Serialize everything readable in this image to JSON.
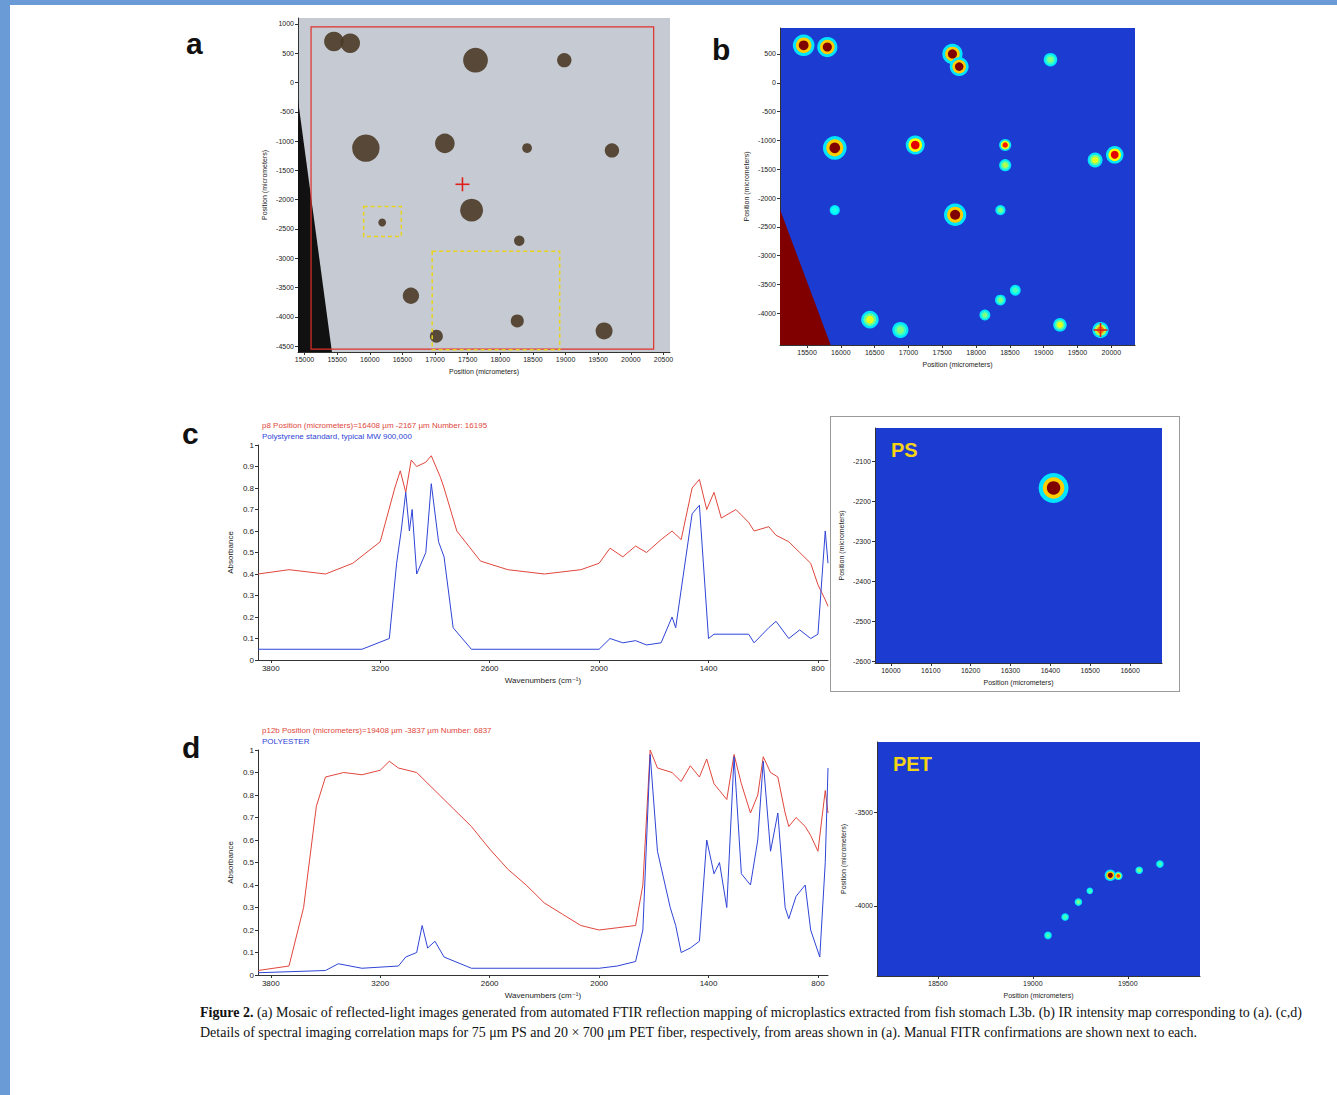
{
  "chart_data": [
    {
      "panel": "a",
      "type": "scatter",
      "x_label": "Position (micrometers)",
      "y_label": "Position (micrometers)",
      "xlim": [
        14900,
        20600
      ],
      "xticks": [
        15000,
        15500,
        16000,
        16500,
        17000,
        17500,
        18000,
        18500,
        19000,
        19500,
        20000,
        20500
      ],
      "ylim": [
        -4600,
        1100
      ],
      "yticks": [
        -4500,
        -4000,
        -3500,
        -3000,
        -2500,
        -2000,
        -1500,
        -1000,
        -500,
        0,
        500,
        1000
      ],
      "color": "#4a3a26",
      "particles": [
        {
          "x": 15450,
          "y": 700,
          "size": 300
        },
        {
          "x": 15700,
          "y": 670,
          "size": 300
        },
        {
          "x": 17620,
          "y": 380,
          "size": 380
        },
        {
          "x": 18980,
          "y": 380,
          "size": 220
        },
        {
          "x": 15940,
          "y": -1120,
          "size": 420
        },
        {
          "x": 17150,
          "y": -1040,
          "size": 300
        },
        {
          "x": 18410,
          "y": -1120,
          "size": 150
        },
        {
          "x": 19710,
          "y": -1160,
          "size": 220
        },
        {
          "x": 17560,
          "y": -2180,
          "size": 350
        },
        {
          "x": 16190,
          "y": -2390,
          "size": 120
        },
        {
          "x": 18290,
          "y": -2700,
          "size": 160
        },
        {
          "x": 16630,
          "y": -3640,
          "size": 250
        },
        {
          "x": 18260,
          "y": -4070,
          "size": 200
        },
        {
          "x": 19590,
          "y": -4240,
          "size": 260
        },
        {
          "x": 17020,
          "y": -4330,
          "size": 200
        }
      ],
      "mapping_area": {
        "x": [
          15100,
          20350
        ],
        "y": [
          -4550,
          950
        ]
      },
      "selected_areas": [
        {
          "x": [
            15906,
            16483
          ],
          "y": [
            -2628,
            -2115
          ]
        },
        {
          "x": [
            16956,
            18910
          ],
          "y": [
            -4560,
            -2880
          ]
        }
      ],
      "crosshair": {
        "x": 17420,
        "y": -1738
      },
      "filter_edge": [
        [
          14900,
          -300
        ],
        [
          14900,
          -4600
        ],
        [
          15420,
          -4600
        ]
      ]
    },
    {
      "panel": "b",
      "type": "heatmap",
      "x_label": "Position (micrometers)",
      "y_label": "Position (micrometers)",
      "xlim": [
        15100,
        20350
      ],
      "xticks": [
        15500,
        16000,
        16500,
        17000,
        17500,
        18000,
        18500,
        19000,
        19500,
        20000
      ],
      "ylim": [
        -4550,
        950
      ],
      "yticks": [
        -4000,
        -3500,
        -3000,
        -2500,
        -2000,
        -1500,
        -1000,
        -500,
        0,
        500
      ],
      "intensity_range": [
        0,
        1
      ],
      "hotspots": [
        {
          "x": 15450,
          "y": 650,
          "size": 320,
          "intensity": 1
        },
        {
          "x": 15800,
          "y": 620,
          "size": 300,
          "intensity": 1
        },
        {
          "x": 17650,
          "y": 500,
          "size": 300,
          "intensity": 1
        },
        {
          "x": 17750,
          "y": 280,
          "size": 280,
          "intensity": 1
        },
        {
          "x": 19100,
          "y": 400,
          "size": 200,
          "intensity": 0.5
        },
        {
          "x": 15910,
          "y": -1130,
          "size": 350,
          "intensity": 1
        },
        {
          "x": 17100,
          "y": -1080,
          "size": 280,
          "intensity": 0.9
        },
        {
          "x": 18430,
          "y": -1080,
          "size": 180,
          "intensity": 0.85
        },
        {
          "x": 18430,
          "y": -1430,
          "size": 180,
          "intensity": 0.55
        },
        {
          "x": 20050,
          "y": -1250,
          "size": 260,
          "intensity": 0.9
        },
        {
          "x": 19760,
          "y": -1340,
          "size": 220,
          "intensity": 0.6
        },
        {
          "x": 17690,
          "y": -2290,
          "size": 330,
          "intensity": 1
        },
        {
          "x": 18360,
          "y": -2210,
          "size": 150,
          "intensity": 0.5
        },
        {
          "x": 15910,
          "y": -2210,
          "size": 150,
          "intensity": 0.4
        },
        {
          "x": 16430,
          "y": -4110,
          "size": 260,
          "intensity": 0.6
        },
        {
          "x": 16880,
          "y": -4290,
          "size": 240,
          "intensity": 0.5
        },
        {
          "x": 18130,
          "y": -4030,
          "size": 160,
          "intensity": 0.5
        },
        {
          "x": 18360,
          "y": -3770,
          "size": 160,
          "intensity": 0.5
        },
        {
          "x": 18580,
          "y": -3600,
          "size": 160,
          "intensity": 0.45
        },
        {
          "x": 19240,
          "y": -4200,
          "size": 200,
          "intensity": 0.6
        },
        {
          "x": 19840,
          "y": -4290,
          "size": 240,
          "intensity": 0.75
        }
      ],
      "edge_signal": {
        "polygon": [
          [
            15100,
            -2200
          ],
          [
            15100,
            -4550
          ],
          [
            15850,
            -4550
          ]
        ],
        "intensity": 1
      },
      "crosshair": {
        "x": 19840,
        "y": -4290
      }
    },
    {
      "panel": "c",
      "type": "line",
      "x_label": "Wavenumbers (cm⁻¹)",
      "y_label": "Absorbance",
      "xlim": [
        3870,
        745
      ],
      "xticks": [
        3800,
        3200,
        2600,
        2000,
        1400,
        800
      ],
      "ylim": [
        0,
        1
      ],
      "yticks": [
        0,
        0.1,
        0.2,
        0.3,
        0.4,
        0.5,
        0.6,
        0.7,
        0.8,
        0.9,
        1
      ],
      "series": [
        {
          "name": "p8 Position (micrometers)=16408 µm -2167 µm Number: 16195",
          "color": "#e0463c",
          "x": [
            3870,
            3700,
            3500,
            3350,
            3200,
            3120,
            3090,
            3060,
            3030,
            3000,
            2950,
            2920,
            2870,
            2850,
            2780,
            2650,
            2500,
            2300,
            2100,
            2000,
            1940,
            1870,
            1800,
            1740,
            1660,
            1600,
            1550,
            1490,
            1450,
            1410,
            1370,
            1330,
            1250,
            1180,
            1150,
            1070,
            1030,
            960,
            900,
            840,
            800,
            760,
            745
          ],
          "values": [
            0.4,
            0.42,
            0.4,
            0.45,
            0.55,
            0.8,
            0.88,
            0.78,
            0.93,
            0.9,
            0.92,
            0.95,
            0.85,
            0.8,
            0.6,
            0.46,
            0.42,
            0.4,
            0.42,
            0.45,
            0.52,
            0.48,
            0.53,
            0.5,
            0.56,
            0.6,
            0.56,
            0.8,
            0.84,
            0.7,
            0.78,
            0.66,
            0.7,
            0.64,
            0.6,
            0.62,
            0.58,
            0.55,
            0.5,
            0.45,
            0.35,
            0.28,
            0.25
          ]
        },
        {
          "name": "Polystyrene standard, typical MW 900,000",
          "color": "#2f44d6",
          "x": [
            3870,
            3300,
            3150,
            3110,
            3085,
            3060,
            3040,
            3025,
            3000,
            2950,
            2920,
            2880,
            2850,
            2800,
            2700,
            2000,
            1940,
            1870,
            1800,
            1740,
            1660,
            1600,
            1580,
            1490,
            1450,
            1400,
            1370,
            1180,
            1150,
            1070,
            1030,
            960,
            900,
            840,
            800,
            760,
            745
          ],
          "values": [
            0.05,
            0.05,
            0.1,
            0.45,
            0.6,
            0.78,
            0.6,
            0.7,
            0.4,
            0.5,
            0.82,
            0.55,
            0.48,
            0.15,
            0.05,
            0.05,
            0.1,
            0.08,
            0.09,
            0.07,
            0.08,
            0.2,
            0.15,
            0.68,
            0.72,
            0.1,
            0.12,
            0.12,
            0.08,
            0.15,
            0.18,
            0.1,
            0.14,
            0.1,
            0.12,
            0.6,
            0.45
          ]
        }
      ]
    },
    {
      "panel": "c",
      "type": "heatmap",
      "title": "PS",
      "x_label": "Position (micrometers)",
      "y_label": "Position (micrometers)",
      "xlim": [
        15960,
        16680
      ],
      "xticks": [
        16000,
        16100,
        16200,
        16300,
        16400,
        16500,
        16600
      ],
      "ylim": [
        -2605,
        -2017
      ],
      "yticks": [
        -2600,
        -2500,
        -2400,
        -2300,
        -2200,
        -2100
      ],
      "intensity_range": [
        0,
        1
      ],
      "hotspots": [
        {
          "x": 16408,
          "y": -2167,
          "size": 75,
          "intensity": 1
        }
      ]
    },
    {
      "panel": "d",
      "type": "line",
      "x_label": "Wavenumbers (cm⁻¹)",
      "y_label": "Absorbance",
      "xlim": [
        3870,
        745
      ],
      "xticks": [
        3800,
        3200,
        2600,
        2000,
        1400,
        800
      ],
      "ylim": [
        0,
        1
      ],
      "yticks": [
        0,
        0.1,
        0.2,
        0.3,
        0.4,
        0.5,
        0.6,
        0.7,
        0.8,
        0.9,
        1
      ],
      "series": [
        {
          "name": "p12b Position (micrometers)=19408 µm -3837 µm Number: 6837",
          "color": "#e0463c",
          "x": [
            3870,
            3700,
            3620,
            3550,
            3500,
            3400,
            3300,
            3200,
            3150,
            3100,
            3000,
            2900,
            2800,
            2700,
            2600,
            2500,
            2400,
            2300,
            2200,
            2100,
            2000,
            1900,
            1800,
            1760,
            1720,
            1680,
            1600,
            1550,
            1500,
            1450,
            1410,
            1370,
            1340,
            1300,
            1260,
            1220,
            1170,
            1130,
            1100,
            1060,
            1020,
            980,
            960,
            920,
            870,
            840,
            800,
            760,
            745
          ],
          "values": [
            0.02,
            0.04,
            0.3,
            0.75,
            0.88,
            0.9,
            0.89,
            0.91,
            0.95,
            0.92,
            0.9,
            0.82,
            0.74,
            0.66,
            0.56,
            0.47,
            0.4,
            0.32,
            0.27,
            0.22,
            0.2,
            0.21,
            0.22,
            0.4,
            1.0,
            0.92,
            0.9,
            0.86,
            0.93,
            0.88,
            0.96,
            0.85,
            0.82,
            0.78,
            0.98,
            0.85,
            0.72,
            0.8,
            0.97,
            0.9,
            0.88,
            0.72,
            0.66,
            0.7,
            0.66,
            0.62,
            0.55,
            0.82,
            0.72
          ]
        },
        {
          "name": "POLYESTER",
          "color": "#2f44d6",
          "x": [
            3870,
            3500,
            3430,
            3300,
            3100,
            3060,
            3000,
            2970,
            2940,
            2900,
            2850,
            2700,
            2000,
            1900,
            1800,
            1760,
            1720,
            1680,
            1610,
            1580,
            1550,
            1500,
            1450,
            1410,
            1370,
            1340,
            1300,
            1260,
            1220,
            1170,
            1130,
            1100,
            1060,
            1020,
            980,
            960,
            920,
            870,
            840,
            790,
            760,
            745
          ],
          "values": [
            0.01,
            0.02,
            0.05,
            0.03,
            0.04,
            0.08,
            0.1,
            0.22,
            0.12,
            0.15,
            0.08,
            0.03,
            0.03,
            0.04,
            0.06,
            0.2,
            0.98,
            0.55,
            0.3,
            0.22,
            0.1,
            0.12,
            0.15,
            0.6,
            0.45,
            0.5,
            0.3,
            0.97,
            0.45,
            0.4,
            0.6,
            0.95,
            0.55,
            0.72,
            0.3,
            0.25,
            0.35,
            0.4,
            0.2,
            0.08,
            0.5,
            0.92
          ]
        }
      ]
    },
    {
      "panel": "d",
      "type": "heatmap",
      "title": "PET",
      "x_label": "Position (micrometers)",
      "y_label": "Position (micrometers)",
      "xlim": [
        18180,
        19880
      ],
      "xticks": [
        18500,
        19000,
        19500
      ],
      "ylim": [
        -4375,
        -3125
      ],
      "yticks": [
        -4000,
        -3500
      ],
      "intensity_range": [
        0,
        1
      ],
      "hotspots": [
        {
          "x": 19080,
          "y": -4158,
          "size": 40,
          "intensity": 0.45
        },
        {
          "x": 19170,
          "y": -4060,
          "size": 40,
          "intensity": 0.45
        },
        {
          "x": 19240,
          "y": -3980,
          "size": 40,
          "intensity": 0.5
        },
        {
          "x": 19300,
          "y": -3920,
          "size": 35,
          "intensity": 0.45
        },
        {
          "x": 19408,
          "y": -3837,
          "size": 60,
          "intensity": 1
        },
        {
          "x": 19450,
          "y": -3840,
          "size": 45,
          "intensity": 0.8
        },
        {
          "x": 19560,
          "y": -3810,
          "size": 40,
          "intensity": 0.5
        },
        {
          "x": 19669,
          "y": -3777,
          "size": 40,
          "intensity": 0.45
        }
      ]
    }
  ],
  "caption": {
    "label": "Figure 2.",
    "text": "(a) Mosaic of reflected-light images generated from automated FTIR reflection mapping of microplastics extracted from fish stomach L3b. (b) IR intensity map corresponding to (a). (c,d) Details of spectral imaging correlation maps for 75 μm PS and 20 × 700 μm PET fiber, respectively, from areas shown in (a). Manual FITR confirmations are shown next to each."
  }
}
